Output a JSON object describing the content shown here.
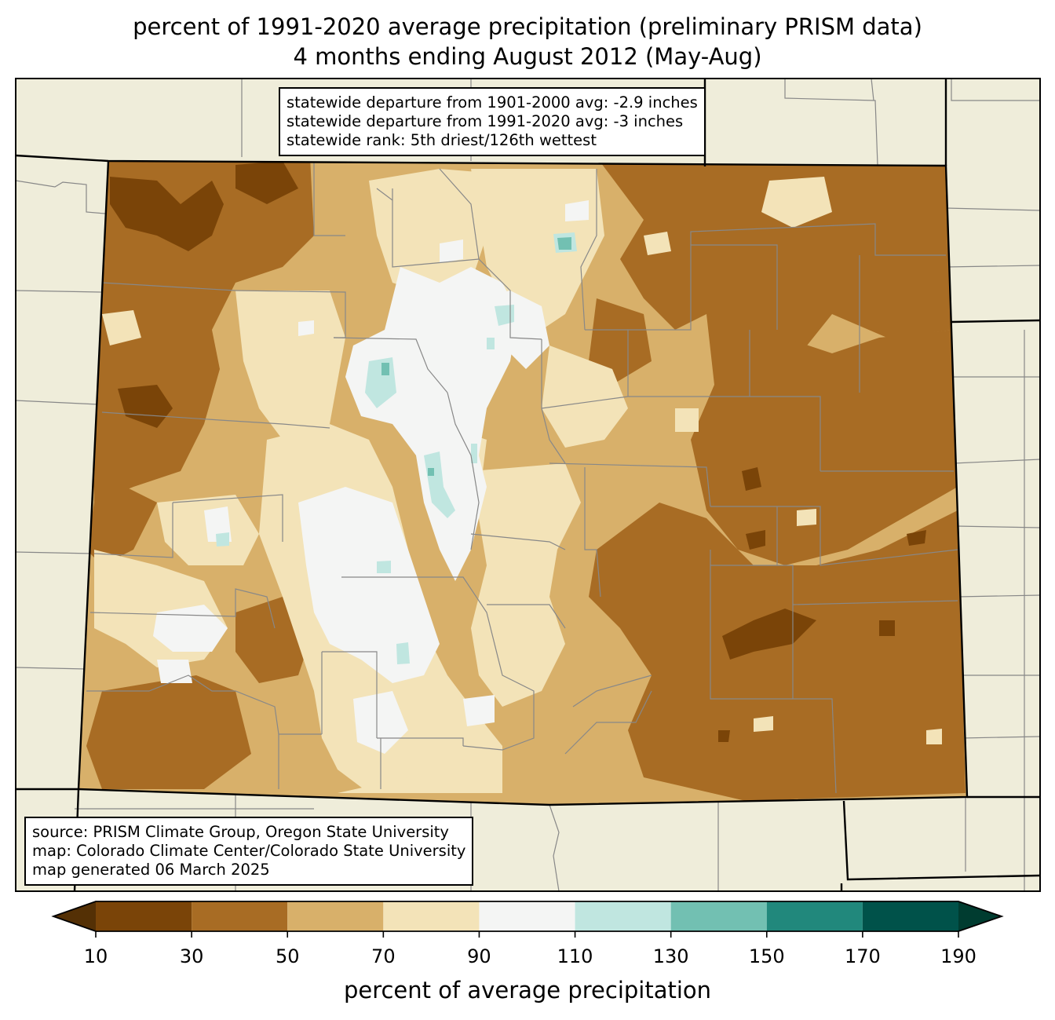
{
  "title": {
    "line1": "percent of 1991-2020 average precipitation (preliminary PRISM data)",
    "line2": "4 months ending August 2012 (May-Aug)"
  },
  "stats_box": {
    "line1": "statewide departure from 1901-2000 avg: -2.9 inches",
    "line2": "statewide departure from 1991-2020 avg: -3 inches",
    "line3": "statewide rank: 5th driest/126th wettest"
  },
  "source_box": {
    "line1": "source: PRISM Climate Group, Oregon State University",
    "line2": "map: Colorado Climate Center/Colorado State University",
    "line3": "map generated 06 March 2025"
  },
  "colorbar": {
    "label": "percent of average precipitation",
    "ticks": [
      "10",
      "30",
      "50",
      "70",
      "90",
      "110",
      "130",
      "150",
      "170",
      "190"
    ],
    "under_color": "#543005",
    "over_color": "#003c30",
    "bins": [
      {
        "from": 10,
        "to": 30,
        "color": "#7a4408"
      },
      {
        "from": 30,
        "to": 50,
        "color": "#a86c24"
      },
      {
        "from": 50,
        "to": 70,
        "color": "#d8b06a"
      },
      {
        "from": 70,
        "to": 90,
        "color": "#f3e3b8"
      },
      {
        "from": 90,
        "to": 110,
        "color": "#f4f5f4"
      },
      {
        "from": 110,
        "to": 130,
        "color": "#c0e6e0"
      },
      {
        "from": 130,
        "to": 150,
        "color": "#72c0b2"
      },
      {
        "from": 150,
        "to": 170,
        "color": "#21887c"
      },
      {
        "from": 170,
        "to": 190,
        "color": "#00524a"
      }
    ]
  },
  "colors": {
    "background_land": "#efedda",
    "state_border": "#000000",
    "county_border": "#888888"
  }
}
